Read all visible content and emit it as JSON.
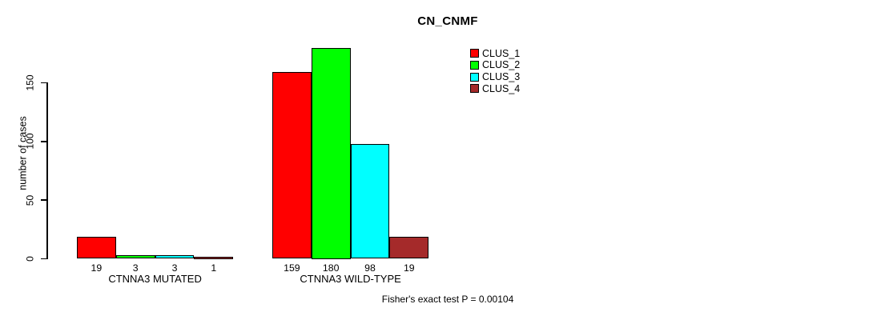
{
  "chart_data": {
    "type": "bar",
    "title": "CN_CNMF",
    "ylabel": "number of cases",
    "xlabel": "",
    "note": "Fisher's exact test P = 0.00104",
    "yticks": [
      0,
      50,
      100,
      150
    ],
    "ylim": [
      0,
      180
    ],
    "grid": false,
    "legend_position": "top-right",
    "bar_value_labels": true,
    "categories": [
      "CTNNA3 MUTATED",
      "CTNNA3 WILD-TYPE"
    ],
    "series": [
      {
        "name": "CLUS_1",
        "color": "#ff0000",
        "values": [
          19,
          159
        ]
      },
      {
        "name": "CLUS_2",
        "color": "#00ff00",
        "values": [
          3,
          180
        ]
      },
      {
        "name": "CLUS_3",
        "color": "#00ffff",
        "values": [
          3,
          98
        ]
      },
      {
        "name": "CLUS_4",
        "color": "#a52a2a",
        "values": [
          1,
          19
        ]
      }
    ]
  }
}
